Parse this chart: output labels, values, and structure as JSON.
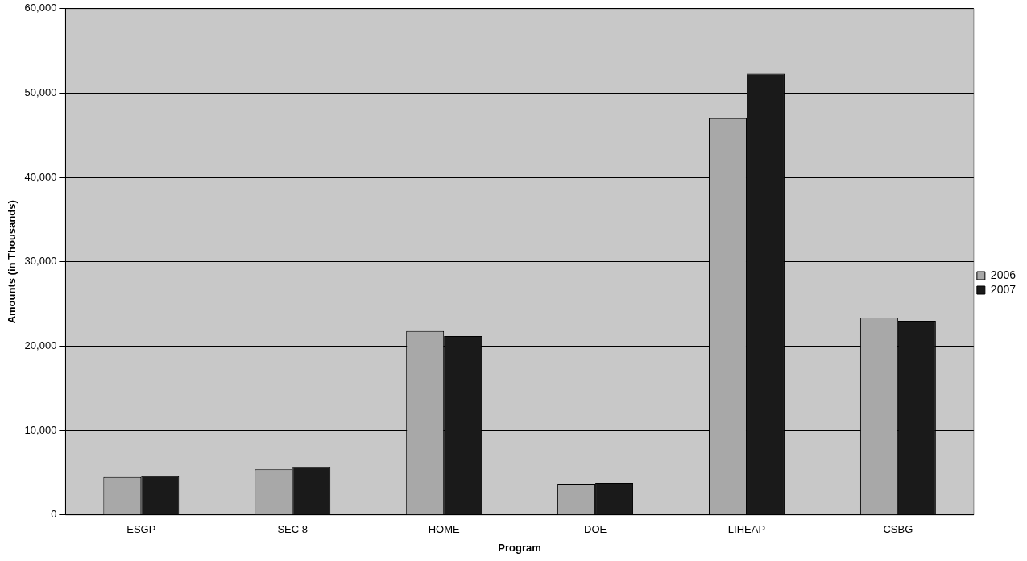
{
  "chart_data": {
    "type": "bar",
    "xlabel": "Program",
    "ylabel": "Amounts (in Thousands)",
    "categories": [
      "ESGP",
      "SEC 8",
      "HOME",
      "DOE",
      "LIHEAP",
      "CSBG"
    ],
    "series": [
      {
        "name": "2006",
        "color": "#a8a8a8",
        "values": [
          4500,
          5400,
          21800,
          3600,
          47000,
          23400
        ]
      },
      {
        "name": "2007",
        "color": "#1a1a1a",
        "values": [
          4600,
          5700,
          21200,
          3800,
          52300,
          23000
        ]
      }
    ],
    "ylim": [
      0,
      60000
    ],
    "yticks": [
      {
        "value": 0,
        "label": "0"
      },
      {
        "value": 10000,
        "label": "10,000"
      },
      {
        "value": 20000,
        "label": "20,000"
      },
      {
        "value": 30000,
        "label": "30,000"
      },
      {
        "value": 40000,
        "label": "40,000"
      },
      {
        "value": 50000,
        "label": "50,000"
      },
      {
        "value": 60000,
        "label": "60,000"
      }
    ],
    "grid": "y",
    "legend": "right"
  }
}
